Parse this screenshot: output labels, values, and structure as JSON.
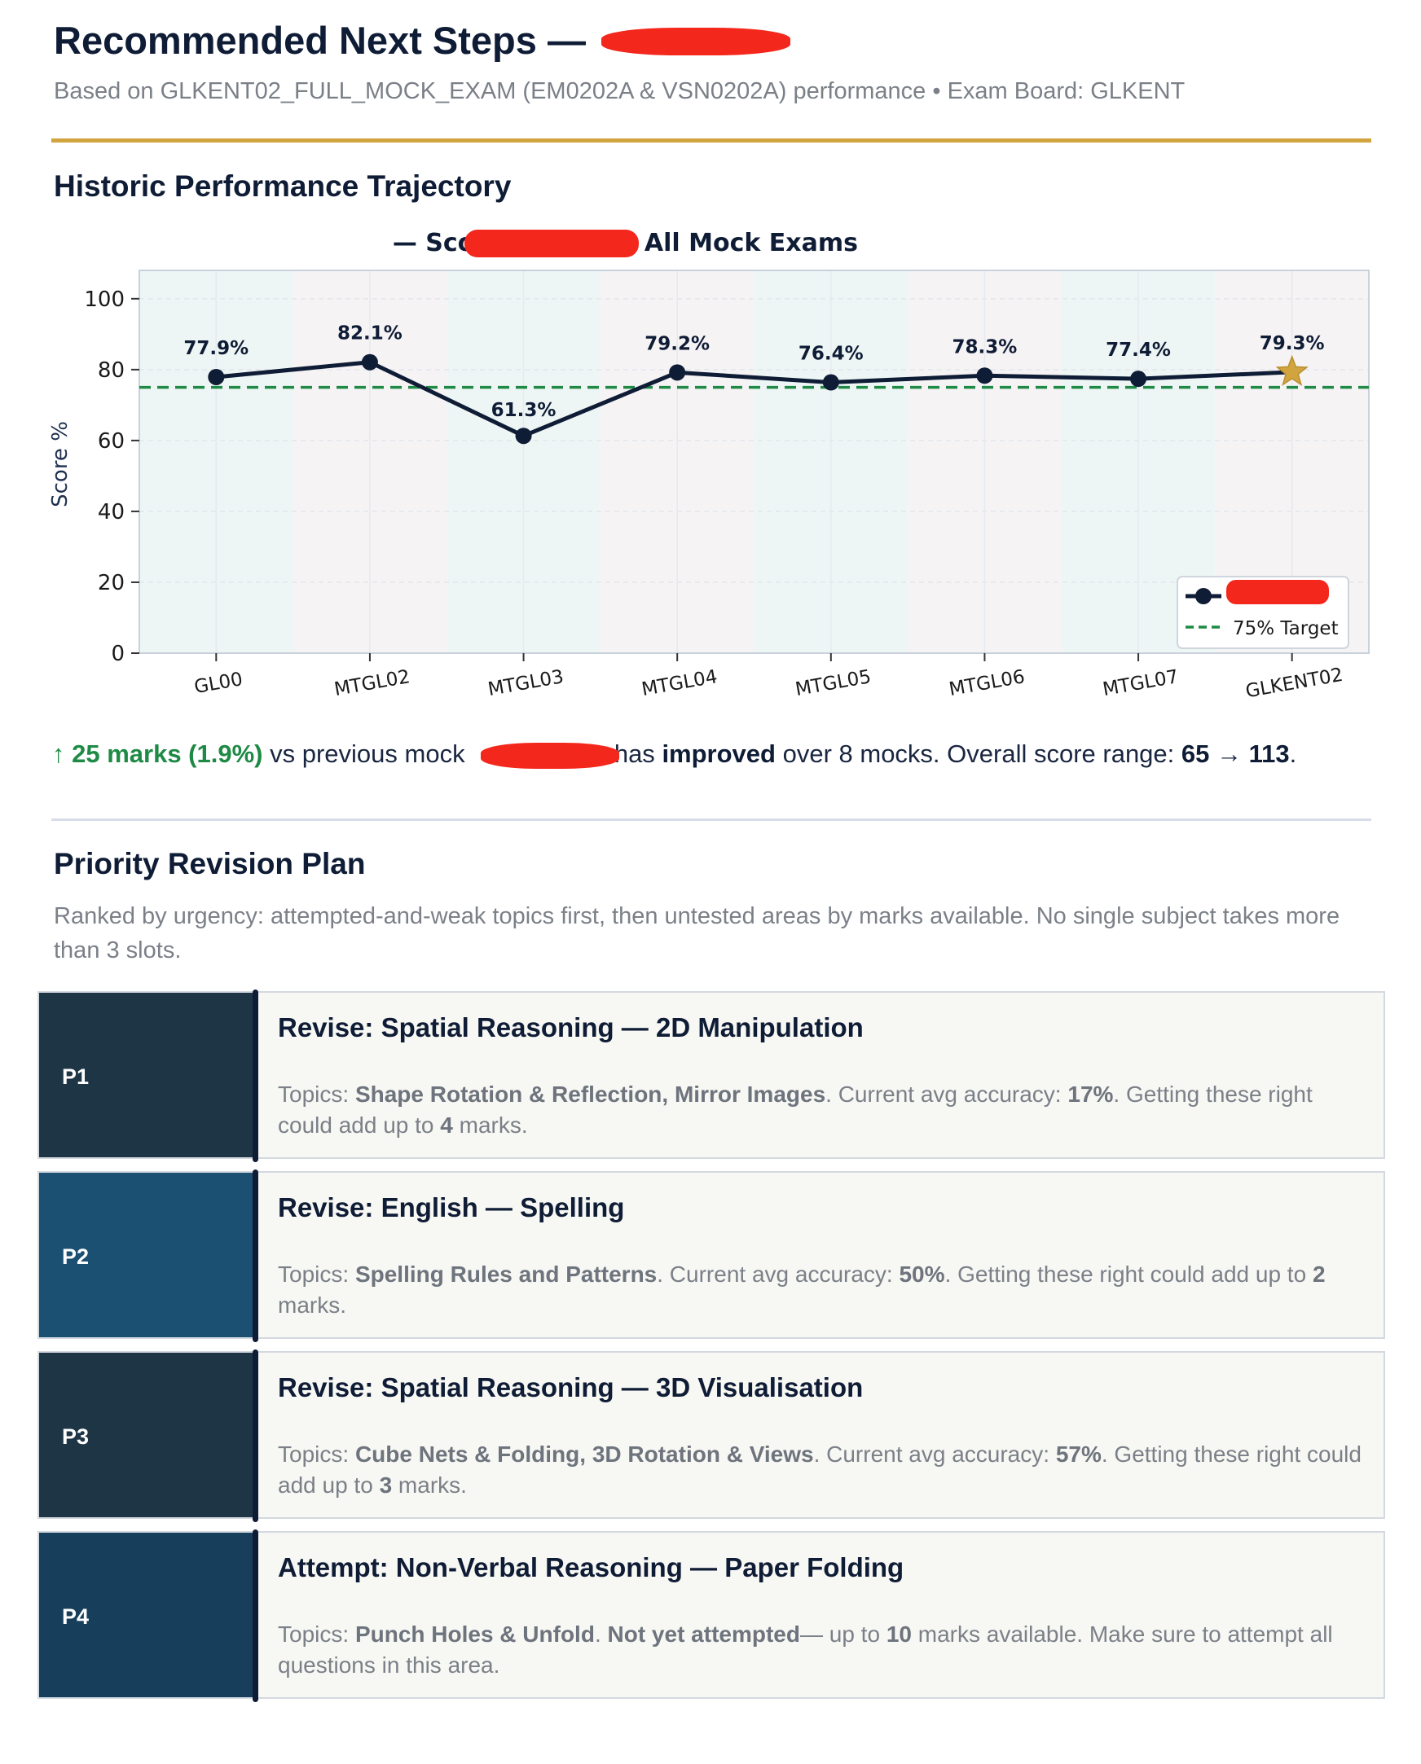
{
  "header": {
    "title": "Recommended Next Steps —",
    "subtitle": "Based on GLKENT02_FULL_MOCK_EXAM (EM0202A & VSN0202A) performance • Exam Board: GLKENT"
  },
  "trajectory": {
    "heading": "Historic Performance Trajectory"
  },
  "chart_data": {
    "type": "line",
    "title": "— Score % Across All Mock Exams",
    "xlabel": "",
    "ylabel": "Score %",
    "categories": [
      "GL00",
      "MTGL02",
      "MTGL03",
      "MTGL04",
      "MTGL05",
      "MTGL06",
      "MTGL07",
      "GLKENT02"
    ],
    "series": [
      {
        "values": [
          77.9,
          82.1,
          61.3,
          79.2,
          76.4,
          78.3,
          77.4,
          79.3
        ],
        "color": "#0f1c35"
      }
    ],
    "data_labels": [
      "77.9%",
      "82.1%",
      "61.3%",
      "79.2%",
      "76.4%",
      "78.3%",
      "77.4%",
      "79.3%"
    ],
    "target": {
      "value": 75,
      "label": "75% Target",
      "color": "#1e8a45"
    },
    "highlight_last_marker": "star",
    "highlight_color": "#d1a43f",
    "ylim": [
      0,
      108
    ],
    "yticks": [
      0,
      20,
      40,
      60,
      80,
      100
    ],
    "grid": true,
    "legend_position": "bottom-right"
  },
  "summary": {
    "delta": "↑ 25 marks (1.9%)",
    "vs": "vs previous mock",
    "mid": "has",
    "improved": "improved",
    "over": "over 8 mocks. Overall score range:",
    "range_low": "65",
    "arrow": "→",
    "range_high": "113",
    "end": "."
  },
  "plan": {
    "heading": "Priority Revision Plan",
    "description": "Ranked by urgency: attempted-and-weak topics first, then untested areas by marks available. No single subject takes more than 3 slots.",
    "items": [
      {
        "badge": "P1",
        "color": "#1e3546",
        "title": "Revise: Spatial Reasoning — 2D Manipulation",
        "topics_label": "Topics:",
        "topics": "Shape Rotation & Reflection, Mirror Images",
        "acc_label": ". Current avg accuracy:",
        "acc": "17%",
        "gain_label": ". Getting these right could add up to",
        "marks": "4",
        "tail": "marks."
      },
      {
        "badge": "P2",
        "color": "#1b5073",
        "title": "Revise: English — Spelling",
        "topics_label": "Topics:",
        "topics": "Spelling Rules and Patterns",
        "acc_label": ". Current avg accuracy:",
        "acc": "50%",
        "gain_label": ". Getting these right could add up to",
        "marks": "2",
        "tail": "marks."
      },
      {
        "badge": "P3",
        "color": "#1e3546",
        "title": "Revise: Spatial Reasoning — 3D Visualisation",
        "topics_label": "Topics:",
        "topics": "Cube Nets & Folding, 3D Rotation & Views",
        "acc_label": ". Current avg accuracy:",
        "acc": "57%",
        "gain_label": ". Getting these right could add up to",
        "marks": "3",
        "tail": "marks."
      },
      {
        "badge": "P4",
        "color": "#173f5c",
        "title": "Attempt: Non-Verbal Reasoning — Paper Folding",
        "topics_label": "Topics:",
        "topics": "Punch Holes & Unfold",
        "acc_label": ".",
        "acc": "Not yet attempted",
        "gain_label": "— up to",
        "marks": "10",
        "tail": "marks available. Make sure to attempt all questions in this area."
      }
    ]
  }
}
